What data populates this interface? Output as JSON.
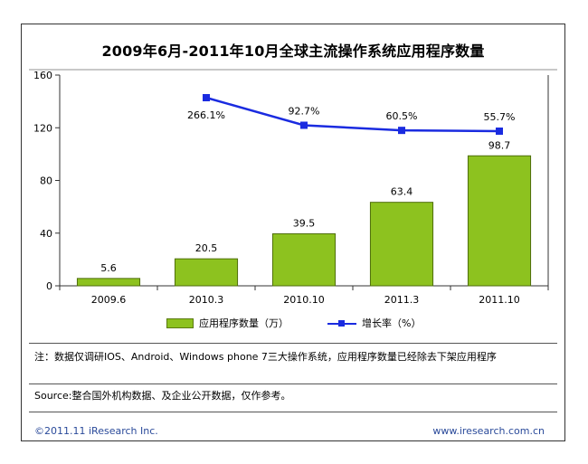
{
  "chart_data": {
    "type": "bar",
    "title": "2009年6月-2011年10月全球主流操作系统应用程序数量",
    "categories": [
      "2009.6",
      "2010.3",
      "2010.10",
      "2011.3",
      "2011.10"
    ],
    "series": [
      {
        "name": "应用程序数量（万）",
        "type": "bar",
        "values": [
          5.6,
          20.5,
          39.5,
          63.4,
          98.7
        ],
        "labels": [
          "5.6",
          "20.5",
          "39.5",
          "63.4",
          "98.7"
        ],
        "color": "#8dc21f"
      },
      {
        "name": "增长率（%）",
        "type": "line",
        "values": [
          null,
          266.1,
          92.7,
          60.5,
          55.7
        ],
        "labels": [
          "",
          "266.1%",
          "92.7%",
          "60.5%",
          "55.7%"
        ],
        "color": "#1a2be0"
      }
    ],
    "yticks": [
      "0",
      "40",
      "80",
      "120",
      "160"
    ],
    "ylim": [
      0,
      160
    ],
    "grid": false,
    "legend_position": "bottom"
  },
  "note": "注：数据仅调研IOS、Android、Windows phone 7三大操作系统，应用程序数量已经除去下架应用程序",
  "source": "Source:整合国外机构数据、及企业公开数据，仅作参考。",
  "copyright": "©2011.11 iResearch Inc.",
  "website": "www.iresearch.com.cn"
}
